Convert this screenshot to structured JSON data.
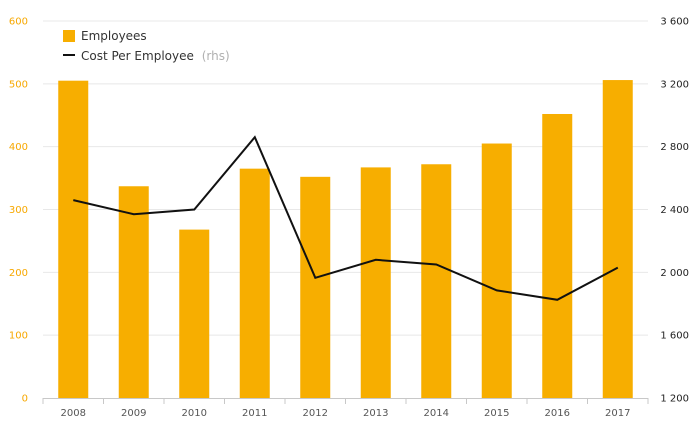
{
  "chart_data": {
    "type": "bar+line",
    "categories": [
      "2008",
      "2009",
      "2010",
      "2011",
      "2012",
      "2013",
      "2014",
      "2015",
      "2016",
      "2017"
    ],
    "series": [
      {
        "name": "Employees",
        "type": "bar",
        "axis": "left",
        "color": "#f7ae00",
        "values": [
          505,
          337,
          268,
          365,
          352,
          367,
          372,
          405,
          452,
          506
        ]
      },
      {
        "name": "Cost Per Employee",
        "name_suffix": "(rhs)",
        "type": "line",
        "axis": "right",
        "color": "#111111",
        "values": [
          2460,
          2370,
          2400,
          2860,
          1965,
          2080,
          2050,
          1885,
          1825,
          2030
        ]
      }
    ],
    "y_left": {
      "min": 0,
      "max": 600,
      "ticks": [
        "0",
        "100",
        "200",
        "300",
        "400",
        "500",
        "600"
      ]
    },
    "y_right": {
      "min": 1200,
      "max": 3600,
      "ticks": [
        "1 200",
        "1 600",
        "2 000",
        "2 400",
        "2 800",
        "3 200",
        "3 600"
      ]
    },
    "grid": true,
    "legend_position": "top-left",
    "left_axis_color": "#f7a800",
    "grid_color": "#e8e8e8",
    "xlabel": "",
    "ylabel": ""
  }
}
